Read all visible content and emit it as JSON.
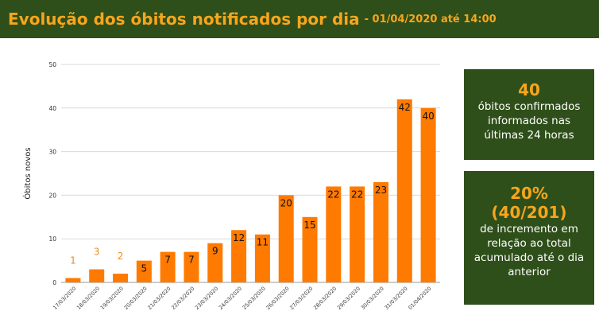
{
  "header": {
    "title": "Evolução dos óbitos notificados por dia",
    "subtitle": "- 01/04/2020 até 14:00"
  },
  "cards": [
    {
      "value": "40",
      "text": "óbitos confirmados informados nas últimas 24 horas"
    },
    {
      "value": "20%",
      "value2": "(40/201)",
      "text": "de incremento em relação ao total acumulado até o dia anterior"
    }
  ],
  "colors": {
    "bar": "#ff7a00",
    "header_bg": "#2f4f1a",
    "accent": "#f7a51c",
    "label_small": "#f08a1c"
  },
  "chart_data": {
    "type": "bar",
    "ylabel": "Óbitos novos",
    "ylim": [
      0,
      50
    ],
    "yticks": [
      "0",
      "10",
      "20",
      "30",
      "40",
      "50"
    ],
    "grid": true,
    "categories": [
      "17/03/2020",
      "18/03/2020",
      "19/03/2020",
      "20/03/2020",
      "21/03/2020",
      "22/03/2020",
      "23/03/2020",
      "24/03/2020",
      "25/03/2020",
      "26/03/2020",
      "27/03/2020",
      "28/03/2020",
      "29/03/2020",
      "30/03/2020",
      "31/03/2020",
      "01/04/2020"
    ],
    "values": [
      1,
      3,
      2,
      5,
      7,
      7,
      9,
      12,
      11,
      20,
      15,
      22,
      22,
      23,
      42,
      40
    ],
    "labels": [
      "1",
      "3",
      "2",
      "5",
      "7",
      "7",
      "9",
      "12",
      "11",
      "20",
      "15",
      "22",
      "22",
      "23",
      "42",
      "40"
    ]
  }
}
